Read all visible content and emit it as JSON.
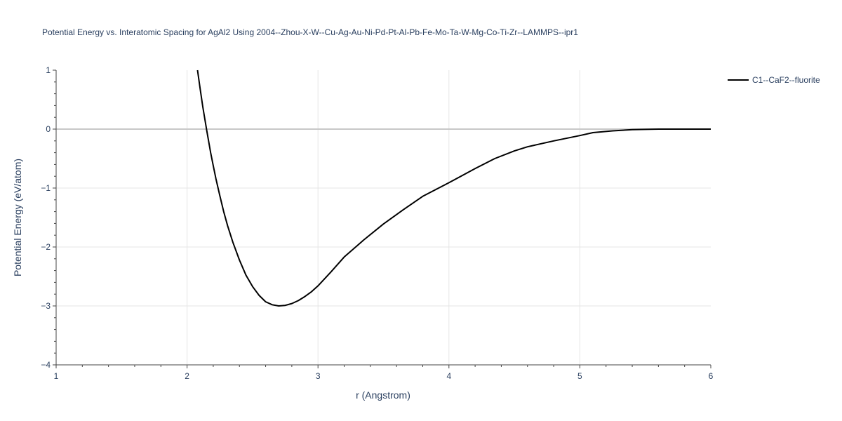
{
  "chart_data": {
    "type": "line",
    "title": "Potential Energy vs. Interatomic Spacing for AgAl2 Using 2004--Zhou-X-W--Cu-Ag-Au-Ni-Pd-Pt-Al-Pb-Fe-Mo-Ta-W-Mg-Co-Ti-Zr--LAMMPS--ipr1",
    "xlabel": "r (Angstrom)",
    "ylabel": "Potential Energy (eV/atom)",
    "xlim": [
      1,
      6
    ],
    "ylim": [
      -4,
      1
    ],
    "x_ticks": [
      1,
      2,
      3,
      4,
      5,
      6
    ],
    "y_ticks": [
      1,
      0,
      -1,
      -2,
      -3,
      -4
    ],
    "x_tick_labels": [
      "1",
      "2",
      "3",
      "4",
      "5",
      "6"
    ],
    "y_tick_labels": [
      "1",
      "0",
      "−1",
      "−2",
      "−3",
      "−4"
    ],
    "grid": true,
    "legend_position": "top-right, outside plot",
    "series": [
      {
        "name": "C1--CaF2--fluorite",
        "color": "#000000",
        "x": [
          2.08,
          2.1,
          2.12,
          2.15,
          2.18,
          2.2,
          2.22,
          2.25,
          2.28,
          2.31,
          2.35,
          2.4,
          2.45,
          2.5,
          2.55,
          2.6,
          2.65,
          2.7,
          2.75,
          2.8,
          2.85,
          2.9,
          2.95,
          3.0,
          3.1,
          3.2,
          3.35,
          3.5,
          3.65,
          3.8,
          4.0,
          4.2,
          4.35,
          4.5,
          4.6,
          4.8,
          5.0,
          5.1,
          5.25,
          5.4,
          5.6,
          5.7,
          6.0
        ],
        "y": [
          1.0,
          0.68,
          0.38,
          -0.02,
          -0.4,
          -0.62,
          -0.84,
          -1.13,
          -1.4,
          -1.64,
          -1.92,
          -2.22,
          -2.48,
          -2.67,
          -2.82,
          -2.93,
          -2.98,
          -3.0,
          -2.99,
          -2.96,
          -2.91,
          -2.84,
          -2.76,
          -2.66,
          -2.42,
          -2.17,
          -1.88,
          -1.61,
          -1.37,
          -1.14,
          -0.91,
          -0.67,
          -0.5,
          -0.37,
          -0.3,
          -0.2,
          -0.11,
          -0.06,
          -0.03,
          -0.01,
          0.0,
          0.0,
          0.0
        ]
      }
    ]
  }
}
